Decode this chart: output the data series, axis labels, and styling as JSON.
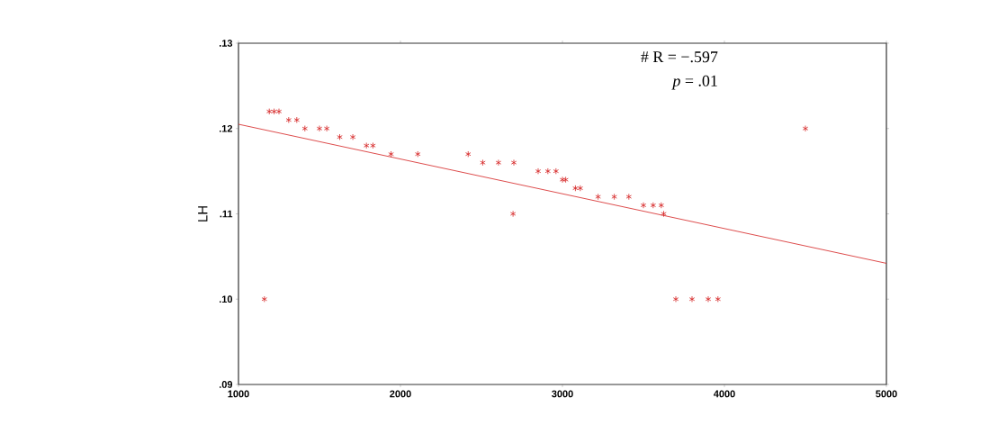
{
  "chart_data": {
    "type": "scatter",
    "ylabel": "LH",
    "annotations": [
      "# R = −.597",
      "*p* = .01"
    ],
    "xlim": [
      1000,
      5000
    ],
    "xticks": [
      1000,
      2000,
      3000,
      4000,
      5000
    ],
    "ylim": [
      0.09,
      0.13
    ],
    "yticks": [
      {
        "value": 0.09,
        "label": ".09"
      },
      {
        "value": 0.1,
        "label": ".10"
      },
      {
        "value": 0.11,
        "label": ".11"
      },
      {
        "value": 0.12,
        "label": ".12"
      },
      {
        "value": 0.13,
        "label": ".13"
      }
    ],
    "grid": false,
    "series": [
      {
        "marker": "cross",
        "color": "#d42020",
        "x": [
          1190,
          1220,
          1250,
          1310,
          1360,
          1410,
          1500,
          1545,
          1625,
          1706,
          1790,
          1830,
          1942,
          2107,
          2418,
          2508,
          2605,
          2700,
          2695,
          1160,
          2850,
          2910,
          2960,
          3000,
          3020,
          3080,
          3110,
          3220,
          3320,
          3410,
          3500,
          3560,
          3610,
          3625,
          3700,
          3800,
          3900,
          3960,
          4500
        ],
        "values": [
          0.122,
          0.122,
          0.122,
          0.121,
          0.121,
          0.12,
          0.12,
          0.12,
          0.119,
          0.119,
          0.118,
          0.118,
          0.117,
          0.117,
          0.117,
          0.116,
          0.116,
          0.116,
          0.11,
          0.1,
          0.115,
          0.115,
          0.115,
          0.114,
          0.114,
          0.113,
          0.113,
          0.112,
          0.112,
          0.112,
          0.111,
          0.111,
          0.111,
          0.11,
          0.1,
          0.1,
          0.1,
          0.1,
          0.12
        ]
      },
      {
        "type": "line",
        "marker": "none",
        "color": "#d42020",
        "x": [
          1000,
          5000
        ],
        "values": [
          0.1205,
          0.1042
        ]
      }
    ]
  }
}
